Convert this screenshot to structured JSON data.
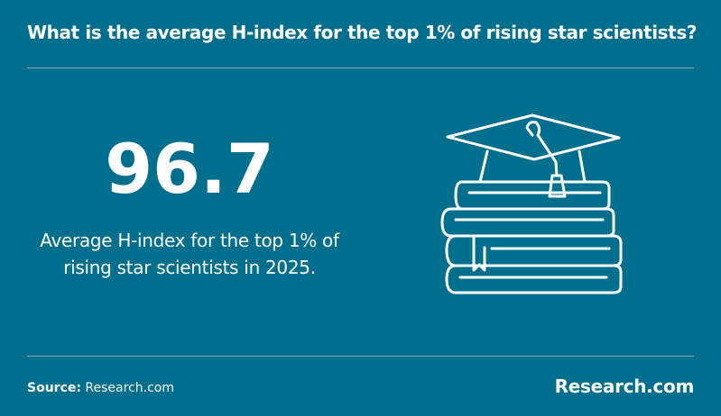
{
  "header": {
    "title": "What is the average H-index for the top 1% of rising star scientists?"
  },
  "stat": {
    "value": "96.7",
    "description": "Average H-index for the top 1% of rising star scientists in 2025."
  },
  "footer": {
    "source_label": "Source:",
    "source": "Research.com",
    "logo": "Research.com"
  }
}
